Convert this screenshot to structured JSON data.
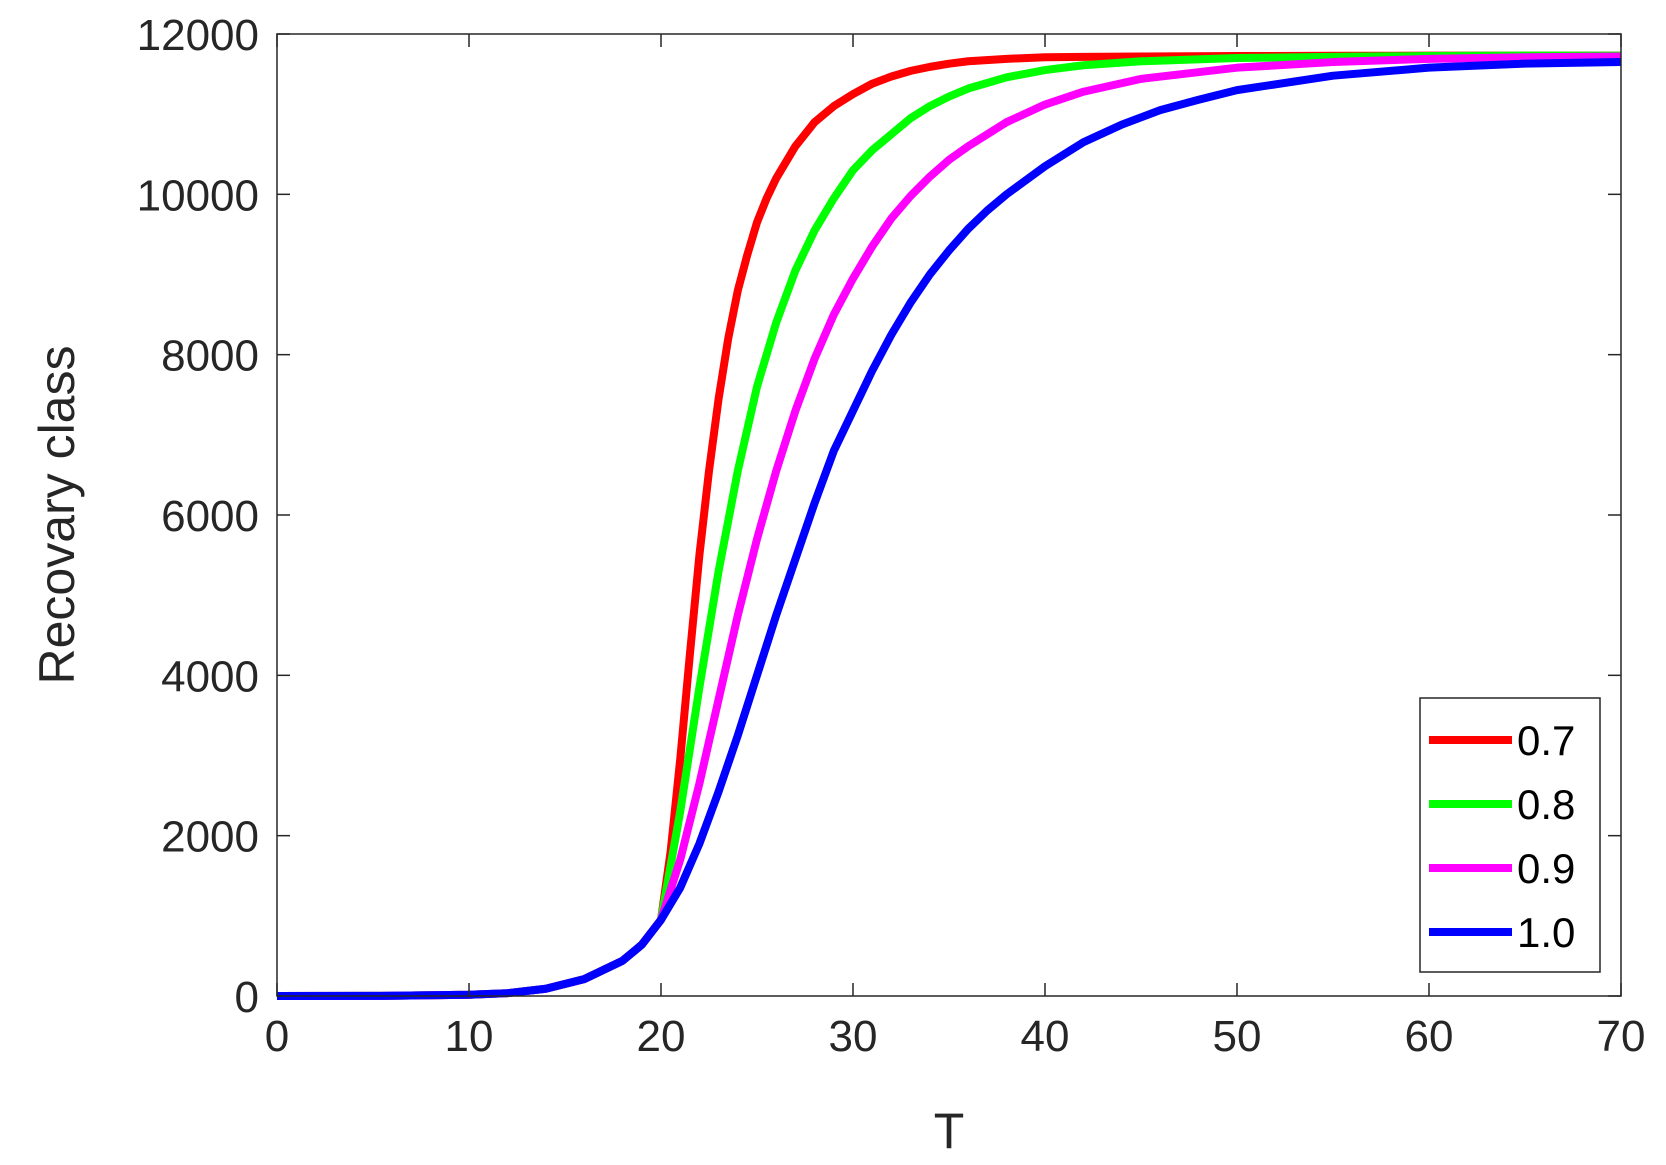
{
  "chart_data": {
    "type": "line",
    "title": "",
    "xlabel": "T",
    "ylabel": "Recovary class",
    "xlim": [
      0,
      70
    ],
    "ylim": [
      0,
      12000
    ],
    "xticks": [
      0,
      10,
      20,
      30,
      40,
      50,
      60,
      70
    ],
    "yticks": [
      0,
      2000,
      4000,
      6000,
      8000,
      10000,
      12000
    ],
    "grid": false,
    "legend_position": "bottom-right",
    "series": [
      {
        "name": "0.7",
        "color": "#ff0000",
        "x": [
          0,
          5,
          10,
          12,
          14,
          16,
          18,
          19,
          20,
          20.5,
          21,
          21.5,
          22,
          22.5,
          23,
          23.5,
          24,
          24.5,
          25,
          25.5,
          26,
          27,
          28,
          29,
          30,
          31,
          32,
          33,
          34,
          35,
          36,
          38,
          40,
          42,
          45,
          50,
          55,
          60,
          65,
          70
        ],
        "y": [
          0,
          1,
          15,
          35,
          90,
          210,
          440,
          640,
          950,
          1800,
          2950,
          4250,
          5500,
          6550,
          7450,
          8200,
          8800,
          9250,
          9650,
          9950,
          10200,
          10600,
          10900,
          11100,
          11250,
          11380,
          11470,
          11540,
          11590,
          11630,
          11660,
          11690,
          11710,
          11715,
          11720,
          11725,
          11728,
          11730,
          11730,
          11730
        ]
      },
      {
        "name": "0.8",
        "color": "#00ff00",
        "x": [
          0,
          5,
          10,
          12,
          14,
          16,
          18,
          19,
          20,
          21,
          22,
          23,
          24,
          25,
          26,
          27,
          28,
          29,
          30,
          31,
          32,
          33,
          34,
          35,
          36,
          38,
          40,
          42,
          45,
          50,
          55,
          60,
          65,
          70
        ],
        "y": [
          0,
          1,
          15,
          35,
          90,
          210,
          440,
          640,
          950,
          2300,
          3850,
          5300,
          6550,
          7600,
          8400,
          9050,
          9550,
          9950,
          10300,
          10550,
          10750,
          10950,
          11100,
          11220,
          11320,
          11460,
          11550,
          11610,
          11660,
          11700,
          11715,
          11725,
          11730,
          11730
        ]
      },
      {
        "name": "0.9",
        "color": "#ff00ff",
        "x": [
          0,
          5,
          10,
          12,
          14,
          16,
          18,
          19,
          20,
          21,
          22,
          23,
          24,
          25,
          26,
          27,
          28,
          29,
          30,
          31,
          32,
          33,
          34,
          35,
          36,
          38,
          40,
          42,
          45,
          50,
          55,
          60,
          65,
          70
        ],
        "y": [
          0,
          1,
          15,
          35,
          90,
          210,
          440,
          640,
          950,
          1700,
          2650,
          3700,
          4750,
          5700,
          6550,
          7300,
          7950,
          8500,
          8950,
          9350,
          9700,
          9980,
          10220,
          10430,
          10600,
          10900,
          11120,
          11280,
          11440,
          11580,
          11650,
          11690,
          11710,
          11720
        ]
      },
      {
        "name": "1.0",
        "color": "#0000ff",
        "x": [
          0,
          5,
          10,
          12,
          14,
          16,
          18,
          19,
          20,
          21,
          22,
          23,
          24,
          25,
          26,
          27,
          28,
          29,
          30,
          31,
          32,
          33,
          34,
          35,
          36,
          37,
          38,
          40,
          42,
          44,
          46,
          48,
          50,
          55,
          60,
          65,
          70
        ],
        "y": [
          0,
          1,
          15,
          35,
          90,
          210,
          440,
          640,
          950,
          1350,
          1900,
          2550,
          3250,
          4000,
          4750,
          5450,
          6150,
          6800,
          7300,
          7800,
          8250,
          8650,
          9000,
          9300,
          9570,
          9800,
          10000,
          10350,
          10650,
          10870,
          11050,
          11180,
          11300,
          11480,
          11580,
          11630,
          11650
        ]
      }
    ]
  }
}
